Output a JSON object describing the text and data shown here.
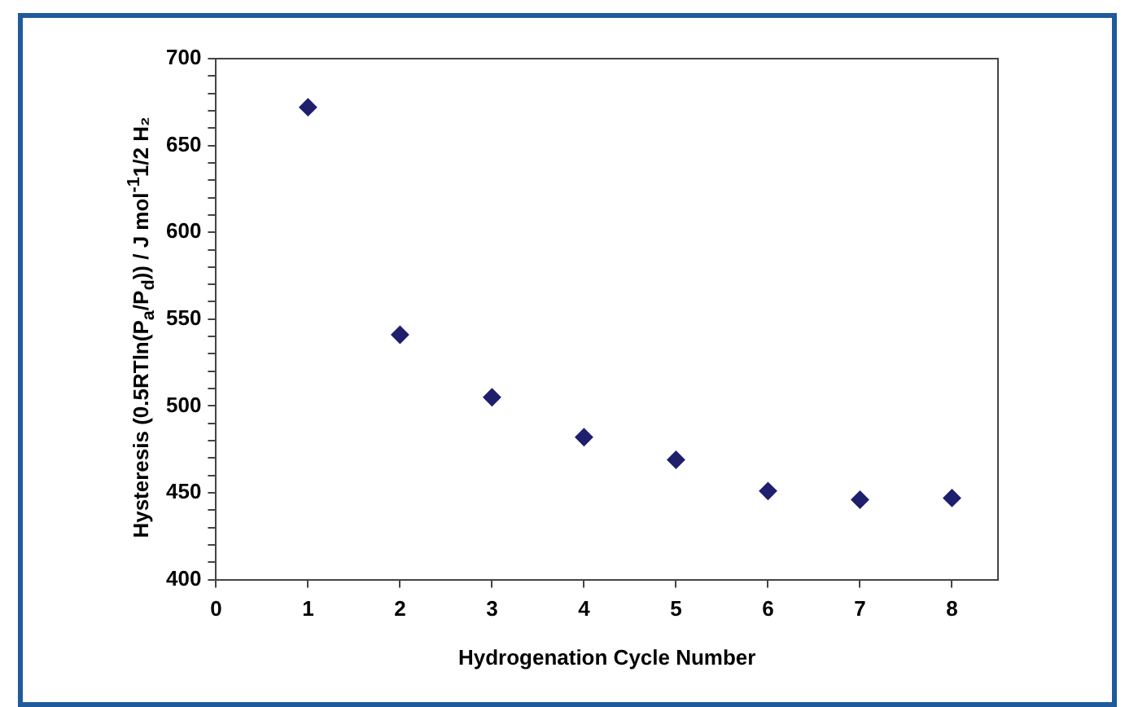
{
  "chart_data": {
    "type": "scatter",
    "xlabel": "Hydrogenation Cycle Number",
    "ylabel": "Hysteresis (0.5RTln(P$_{a}$/P$_{d}$)) / J mol$^{-1}$1/2 H₂",
    "x": [
      1,
      2,
      3,
      4,
      5,
      6,
      7,
      8
    ],
    "series": [
      {
        "color": "#1f1f6e",
        "values": [
          672,
          541,
          505,
          482,
          469,
          451,
          446,
          447
        ]
      }
    ],
    "xlim": [
      0,
      8.5
    ],
    "xticks": [
      0,
      1,
      2,
      3,
      4,
      5,
      6,
      7,
      8
    ],
    "ylim": [
      400,
      700
    ],
    "yticks": [
      400,
      {
        "value": 410,
        "label": null
      },
      {
        "value": 420,
        "label": null
      },
      {
        "value": 430,
        "label": null
      },
      {
        "value": 440,
        "label": null
      },
      450,
      {
        "value": 460,
        "label": null
      },
      {
        "value": 470,
        "label": null
      },
      {
        "value": 480,
        "label": null
      },
      {
        "value": 490,
        "label": null
      },
      500,
      {
        "value": 510,
        "label": null
      },
      {
        "value": 520,
        "label": null
      },
      {
        "value": 530,
        "label": null
      },
      {
        "value": 540,
        "label": null
      },
      550,
      {
        "value": 560,
        "label": null
      },
      {
        "value": 570,
        "label": null
      },
      {
        "value": 580,
        "label": null
      },
      {
        "value": 590,
        "label": null
      },
      600,
      {
        "value": 610,
        "label": null
      },
      {
        "value": 620,
        "label": null
      },
      {
        "value": 630,
        "label": null
      },
      {
        "value": 640,
        "label": null
      },
      650,
      {
        "value": 660,
        "label": null
      },
      {
        "value": 670,
        "label": null
      },
      {
        "value": 680,
        "label": null
      },
      {
        "value": 690,
        "label": null
      },
      700
    ],
    "marker": "diamond",
    "grid": false,
    "legend": false
  }
}
